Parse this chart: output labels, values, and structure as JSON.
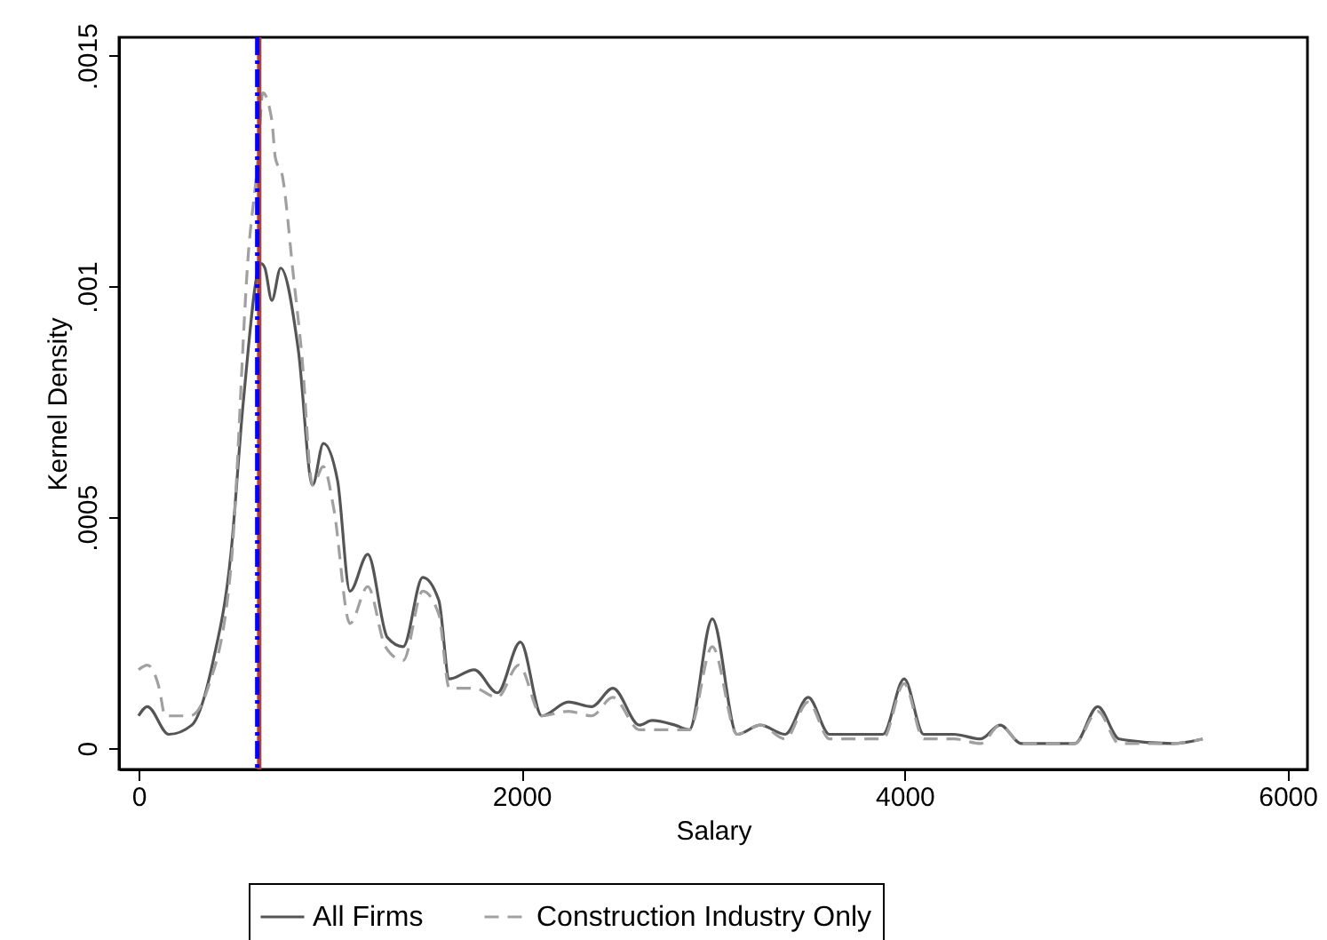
{
  "chart_data": {
    "type": "line",
    "xlabel": "Salary",
    "ylabel": "Kernel Density",
    "xlim": [
      -102,
      6104
    ],
    "ylim": [
      -4.6e-05,
      0.00154
    ],
    "xticks": [
      0,
      2000,
      4000,
      6000
    ],
    "yticks": [
      {
        "value": 0,
        "label": "0"
      },
      {
        "value": 0.0005,
        "label": ".0005"
      },
      {
        "value": 0.001,
        "label": ".001"
      },
      {
        "value": 0.0015,
        "label": ".0015"
      }
    ],
    "grid": false,
    "legend": "bottom",
    "marker": "none",
    "ref_lines": [
      {
        "axis": "x",
        "value": 630,
        "color": "#b04040",
        "line_style": "solid"
      },
      {
        "axis": "x",
        "value": 620,
        "color": "#0000ff",
        "line_style": "dashed"
      }
    ],
    "series": [
      {
        "name": "All Firms",
        "color": "#555555",
        "line_style": "solid",
        "x": [
          0,
          46,
          158,
          278,
          390,
          482,
          547,
          640,
          660,
          696,
          742,
          835,
          909,
          965,
          1039,
          1104,
          1197,
          1299,
          1382,
          1484,
          1568,
          1623,
          1753,
          1874,
          1994,
          2106,
          2245,
          2366,
          2477,
          2616,
          2681,
          2801,
          2876,
          2996,
          3126,
          3247,
          3377,
          3497,
          3608,
          3887,
          3998,
          4100,
          4258,
          4397,
          4499,
          4610,
          4889,
          5009,
          5121,
          5399,
          5557
        ],
        "values": [
          7e-05,
          9e-05,
          3e-05,
          5e-05,
          0.00019,
          0.00042,
          0.00075,
          0.00105,
          0.00104,
          0.00097,
          0.00104,
          0.00086,
          0.00057,
          0.00066,
          0.00058,
          0.00034,
          0.00042,
          0.00024,
          0.00022,
          0.00037,
          0.00032,
          0.00015,
          0.00017,
          0.00012,
          0.00023,
          7e-05,
          0.0001,
          9e-05,
          0.00013,
          5e-05,
          6e-05,
          5e-05,
          4e-05,
          0.00028,
          3e-05,
          5e-05,
          3e-05,
          0.00011,
          3e-05,
          3e-05,
          0.00015,
          3e-05,
          3e-05,
          2e-05,
          5e-05,
          1e-05,
          1e-05,
          9e-05,
          2e-05,
          1e-05,
          2e-05
        ]
      },
      {
        "name": "Construction Industry Only",
        "color": "#a0a0a0",
        "line_style": "dashed",
        "x": [
          0,
          46,
          108,
          139,
          269,
          362,
          482,
          575,
          622,
          649,
          696,
          714,
          751,
          807,
          853,
          909,
          965,
          1019,
          1104,
          1197,
          1289,
          1382,
          1484,
          1568,
          1623,
          1753,
          1874,
          1985,
          2106,
          2245,
          2366,
          2477,
          2616,
          2876,
          2996,
          3126,
          3247,
          3377,
          3497,
          3608,
          3887,
          3998,
          4100,
          4258,
          4397,
          4499,
          4610,
          4889,
          5009,
          5121,
          5399,
          5557
        ],
        "values": [
          0.00017,
          0.00018,
          0.00013,
          7e-05,
          7e-05,
          0.00013,
          0.00039,
          0.00108,
          0.00127,
          0.00142,
          0.00136,
          0.00128,
          0.00124,
          0.00103,
          0.00085,
          0.00057,
          0.00061,
          0.00052,
          0.00027,
          0.00035,
          0.00022,
          0.00019,
          0.00034,
          0.00029,
          0.00013,
          0.00013,
          0.00011,
          0.00018,
          7e-05,
          8e-05,
          7e-05,
          0.00011,
          4e-05,
          4e-05,
          0.00022,
          3e-05,
          5e-05,
          2e-05,
          0.0001,
          2e-05,
          2e-05,
          0.00014,
          2e-05,
          2e-05,
          1e-05,
          5e-05,
          1e-05,
          1e-05,
          8e-05,
          1e-05,
          1e-05,
          2e-05
        ]
      }
    ]
  }
}
